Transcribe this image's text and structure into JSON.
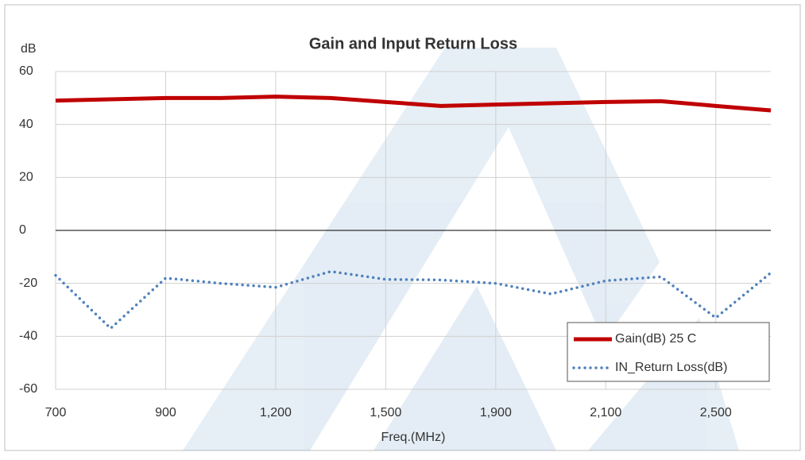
{
  "chart_data": {
    "type": "line",
    "title": "Gain and Input Return Loss",
    "y_label": "dB",
    "x_label": "Freq.(MHz)",
    "categories": [
      "700",
      null,
      "900",
      null,
      "1,200",
      null,
      "1,500",
      null,
      "1,900",
      null,
      "2,100",
      null,
      "2,500",
      null
    ],
    "series": [
      {
        "name": "Gain(dB) 25 C",
        "color": "#c00000",
        "values": [
          49,
          49.5,
          50,
          50,
          50.5,
          50,
          48.5,
          47,
          47.5,
          48,
          48.5,
          48.8,
          47,
          45.3
        ]
      },
      {
        "name": "IN_Return Loss(dB)",
        "color": "#4f81bd",
        "values": [
          -17,
          -37,
          -18,
          -20,
          -21.5,
          -15.5,
          -18.5,
          -18.7,
          -20,
          -24,
          -19,
          -17.5,
          -33,
          -16
        ]
      }
    ],
    "ylim": [
      -60,
      60
    ],
    "yticks": [
      -60,
      -40,
      -20,
      0,
      20,
      40,
      60
    ],
    "grid": true,
    "legend": "lower right"
  }
}
